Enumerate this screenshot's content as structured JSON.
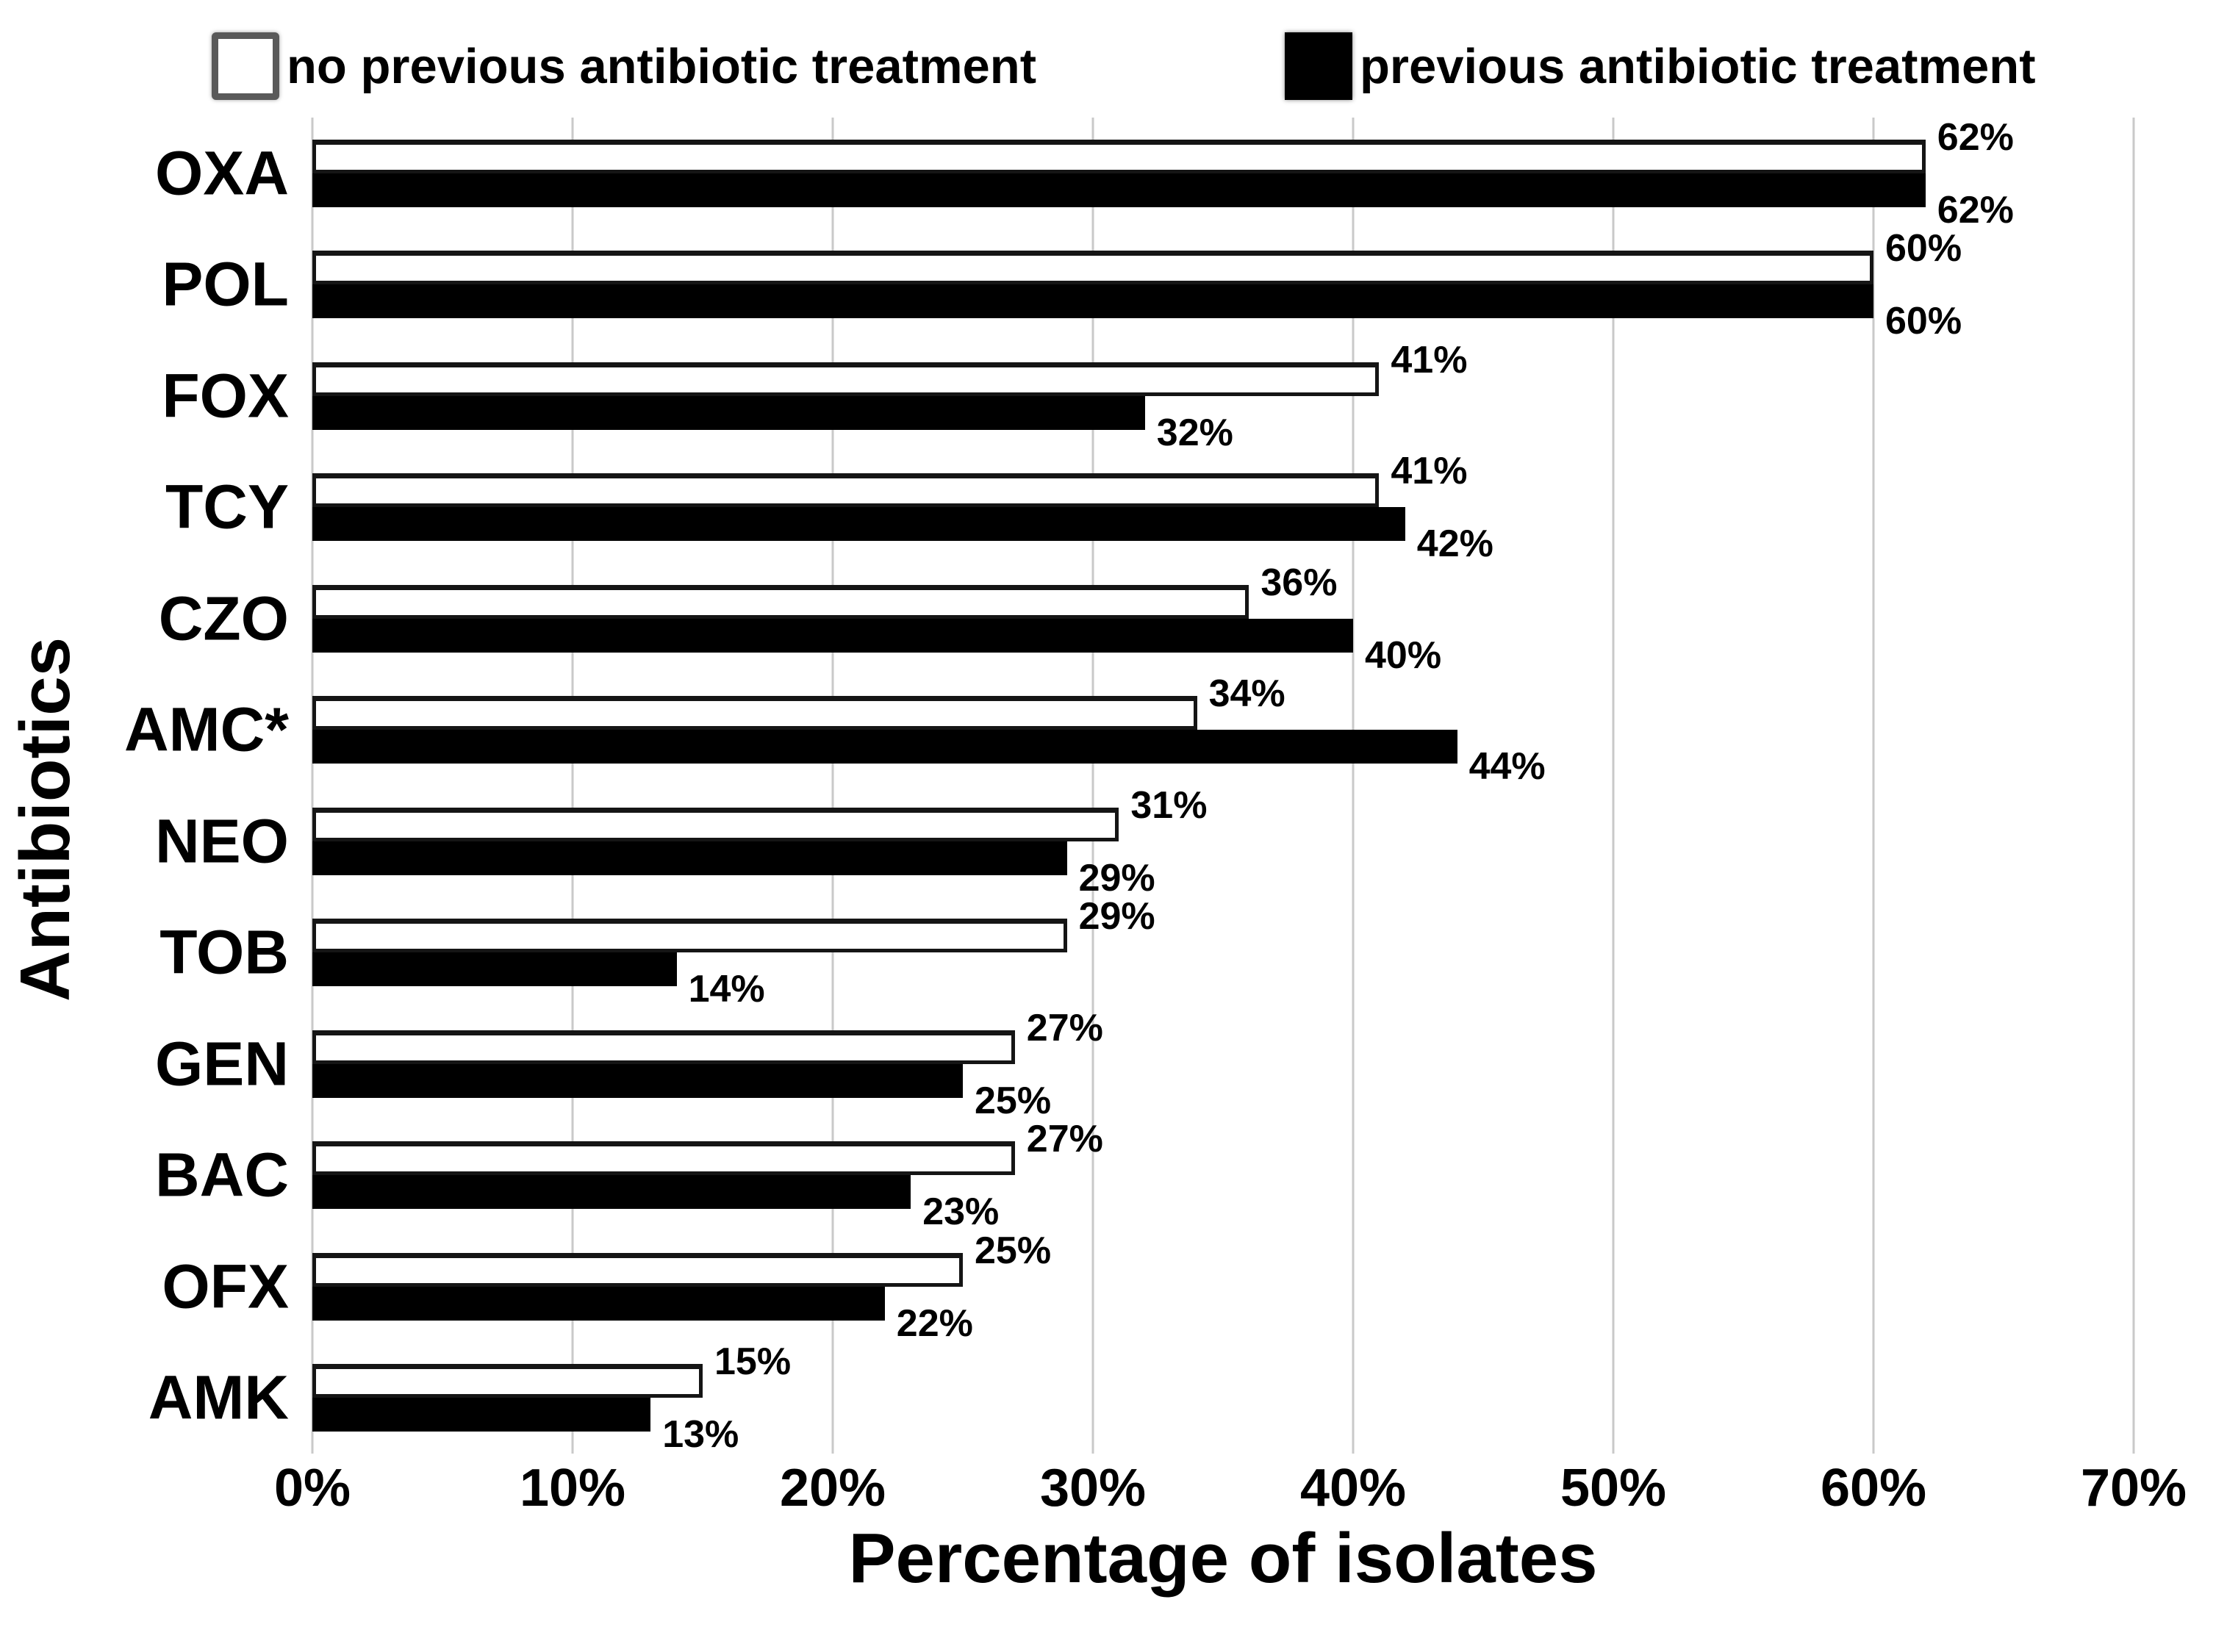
{
  "chart_data": {
    "type": "bar",
    "orientation": "horizontal",
    "title": "",
    "xlabel": "Percentage of isolates",
    "ylabel": "Antibiotics",
    "categories": [
      "OXA",
      "POL",
      "FOX",
      "TCY",
      "CZO",
      "AMC*",
      "NEO",
      "TOB",
      "GEN",
      "BAC",
      "OFX",
      "AMK"
    ],
    "series": [
      {
        "name": "no previous antibiotic treatment",
        "swatch": "white",
        "color": "#ffffff",
        "values": [
          62,
          60,
          41,
          41,
          36,
          34,
          31,
          29,
          27,
          27,
          25,
          15
        ]
      },
      {
        "name": "previous antibiotic treatment",
        "swatch": "black",
        "color": "#000000",
        "values": [
          62,
          60,
          32,
          42,
          40,
          44,
          29,
          14,
          25,
          23,
          22,
          13
        ]
      }
    ],
    "value_suffix": "%",
    "xlim": [
      0,
      70
    ],
    "xticks": [
      "0%",
      "10%",
      "20%",
      "30%",
      "40%",
      "50%",
      "60%",
      "70%"
    ],
    "grid": "vertical",
    "legend_position": "top"
  },
  "legend": {
    "items": [
      {
        "label": "no previous antibiotic treatment",
        "swatch": "white"
      },
      {
        "label": "previous antibiotic treatment",
        "swatch": "black"
      }
    ]
  },
  "colors": {
    "background": "#ffffff",
    "text": "#000000",
    "bar_white_fill": "#ffffff",
    "bar_border": "#151515",
    "bar_black_fill": "#000000",
    "gridline": "#c9c9c9"
  }
}
